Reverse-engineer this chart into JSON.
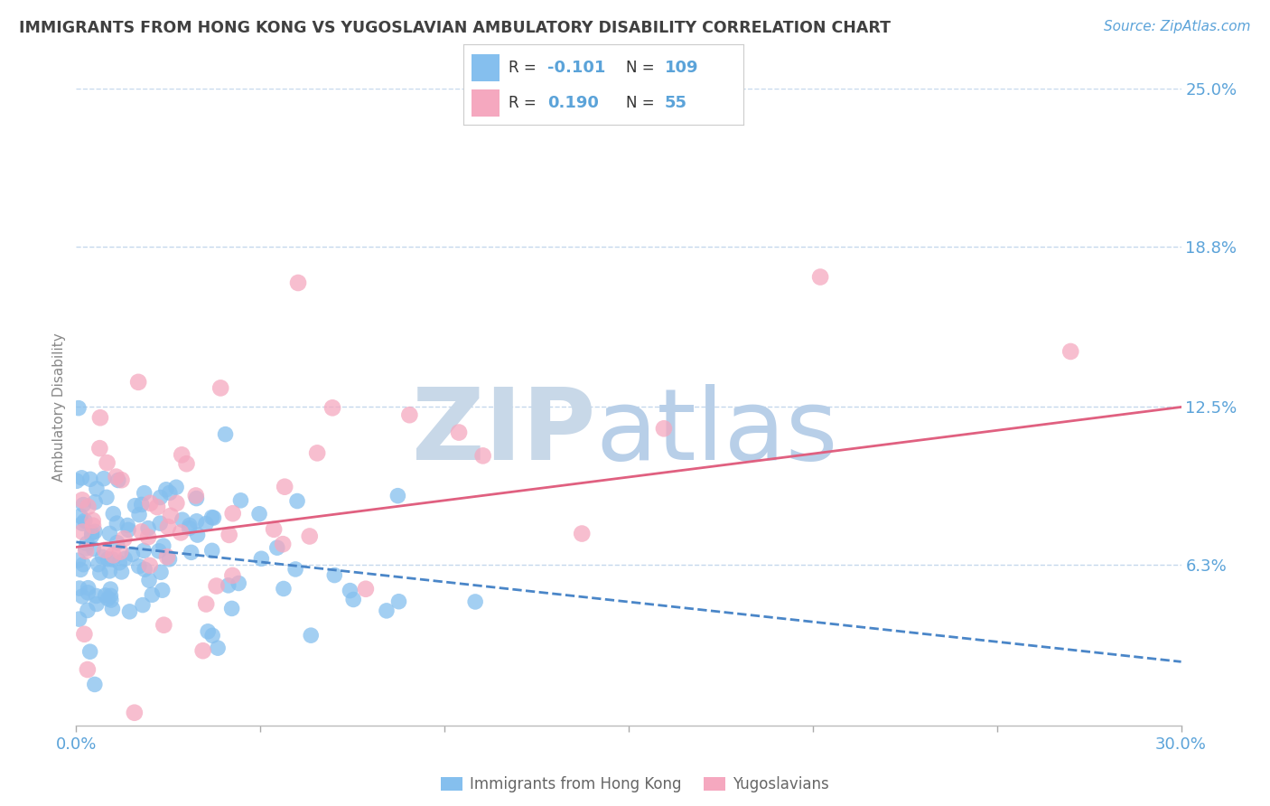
{
  "title": "IMMIGRANTS FROM HONG KONG VS YUGOSLAVIAN AMBULATORY DISABILITY CORRELATION CHART",
  "source_text": "Source: ZipAtlas.com",
  "ylabel": "Ambulatory Disability",
  "x_min": 0.0,
  "x_max": 30.0,
  "y_min": 0.0,
  "y_max": 25.0,
  "y_ticks": [
    6.3,
    12.5,
    18.8,
    25.0
  ],
  "blue_R": -0.101,
  "blue_N": 109,
  "pink_R": 0.19,
  "pink_N": 55,
  "blue_color": "#85bfee",
  "pink_color": "#f5a8bf",
  "blue_line_color": "#4a86c8",
  "pink_line_color": "#e06080",
  "title_color": "#404040",
  "axis_tick_color": "#5ba3d9",
  "grid_color": "#c5d8ec",
  "watermark_zip_color": "#c8d8e8",
  "watermark_atlas_color": "#b8cfe8",
  "legend_blue_label": "Immigrants from Hong Kong",
  "legend_pink_label": "Yugoslavians",
  "background_color": "#ffffff",
  "blue_trend_start_x": 0.0,
  "blue_trend_end_x": 30.0,
  "blue_trend_start_y": 7.2,
  "blue_trend_end_y": 2.5,
  "pink_trend_start_x": 0.0,
  "pink_trend_end_x": 30.0,
  "pink_trend_start_y": 7.0,
  "pink_trend_end_y": 12.5
}
